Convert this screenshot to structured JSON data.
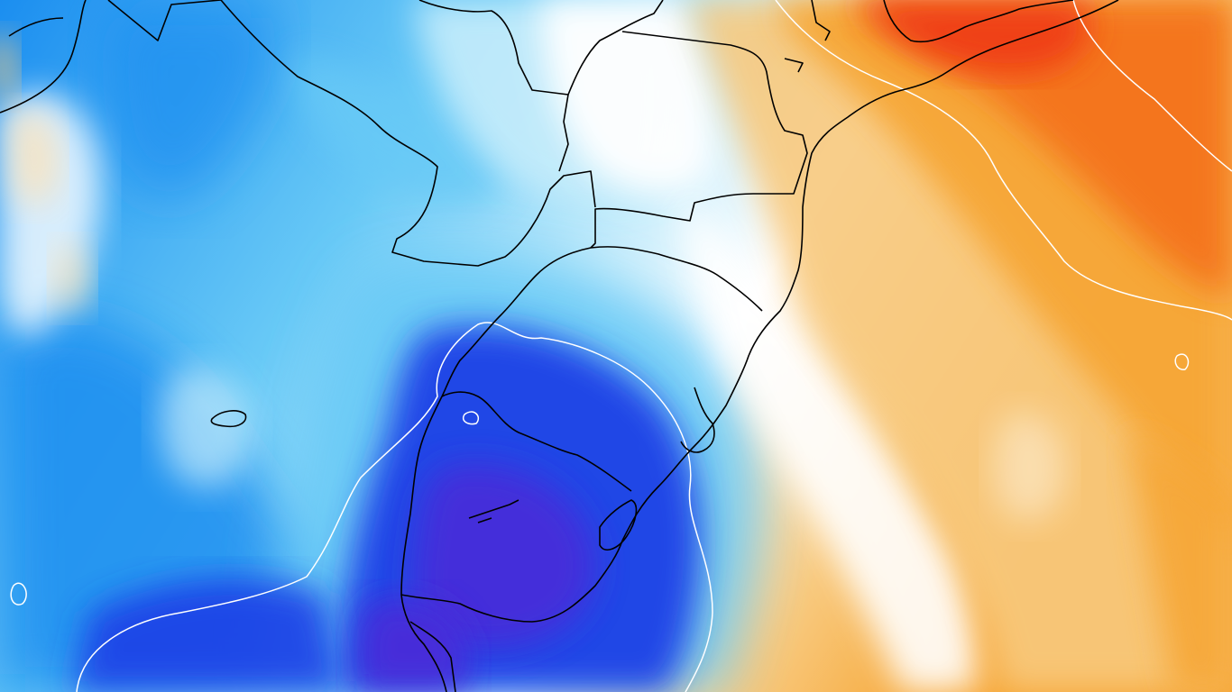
{
  "map": {
    "type": "temperature-anomaly",
    "color_scale": {
      "cold_extreme": "#4b2bd8",
      "cold_deep": "#1e3fe6",
      "cold_mid": "#1b8ef0",
      "cold_light": "#68c9f6",
      "cold_pale": "#c5ecfb",
      "neutral": "#ffffff",
      "warm_pale": "#fbe3bb",
      "warm_light": "#f8c97e",
      "warm_mid": "#f6a431",
      "warm_deep": "#f4731c",
      "warm_extreme": "#ef3a12"
    },
    "isoline_color": "#ffffff",
    "border_color": "#000000"
  }
}
